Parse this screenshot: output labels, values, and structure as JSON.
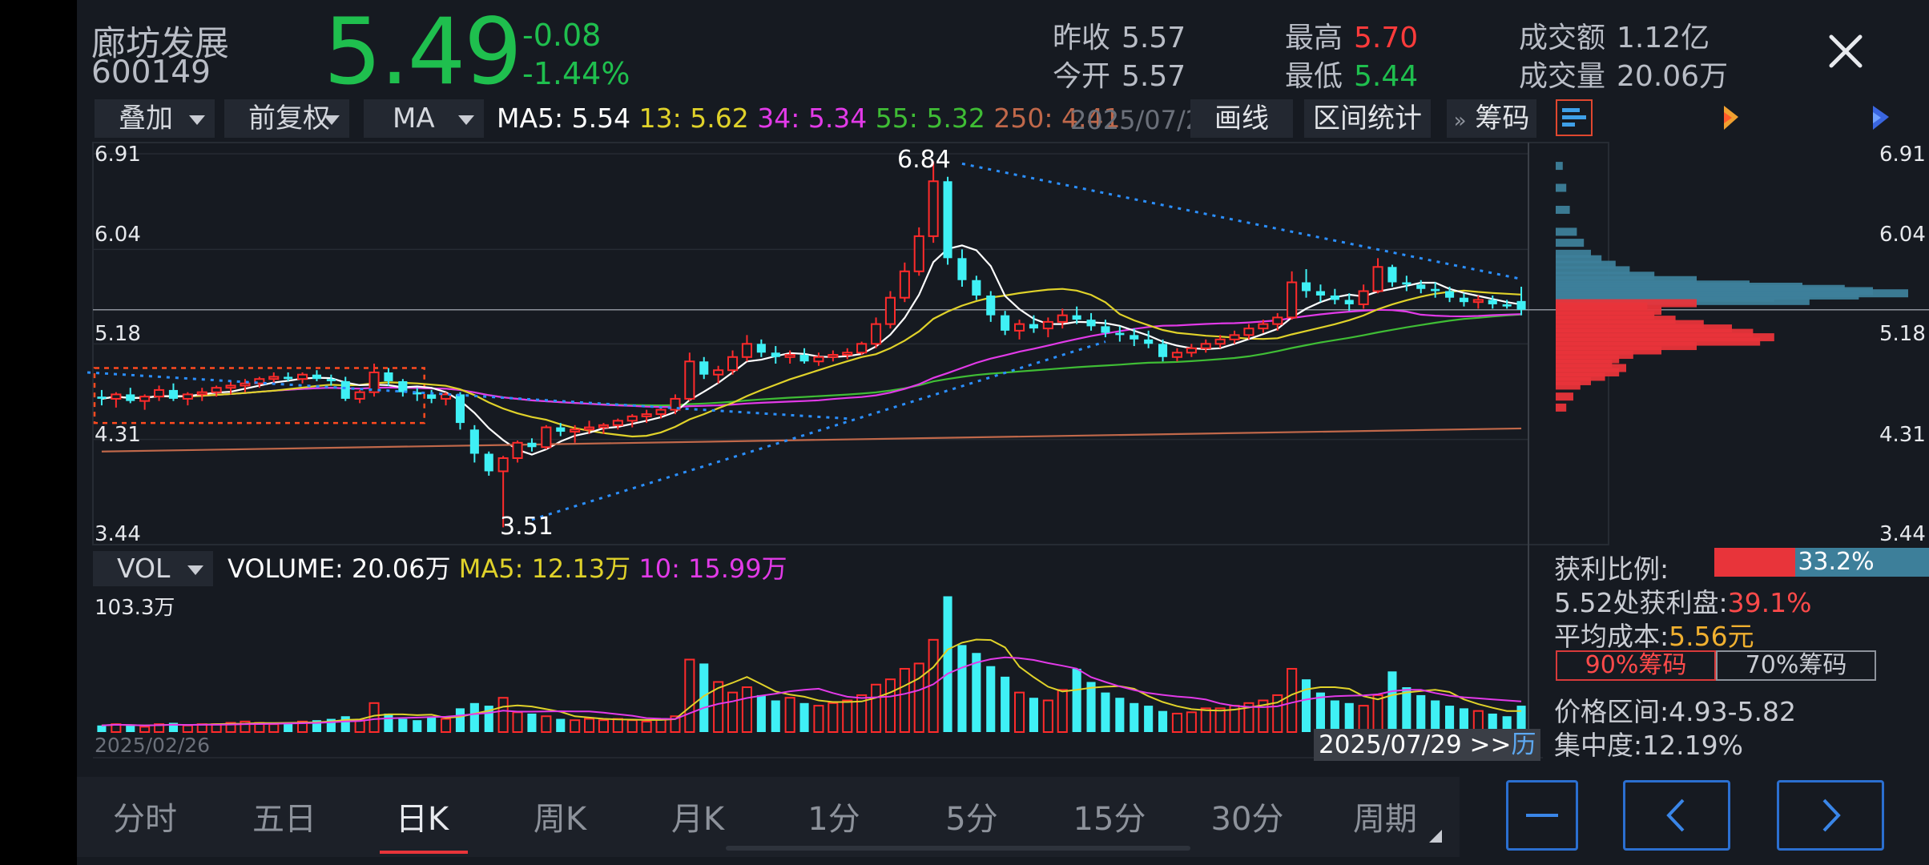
{
  "stock": {
    "name": "廊坊发展",
    "code": "600149",
    "price": "5.49",
    "change": "-0.08",
    "change_pct": "-1.44%"
  },
  "stats": {
    "prev_close_label": "昨收",
    "prev_close": "5.57",
    "open_label": "今开",
    "open": "5.57",
    "high_label": "最高",
    "high": "5.70",
    "low_label": "最低",
    "low": "5.44",
    "turnover_label": "成交额",
    "turnover": "1.12亿",
    "volume_label": "成交量",
    "volume": "20.06万"
  },
  "toolbar": {
    "overlay": "叠加",
    "adjust": "前复权",
    "indicator": "MA",
    "ma5": "MA5: 5.54",
    "ma13": "13: 5.62",
    "ma34": "34: 5.34",
    "ma55": "55: 5.32",
    "ma250": "250: 4.41",
    "date_partial": "2025/07/2",
    "draw": "画线",
    "range_stats": "区间统计",
    "chips": "筹码",
    "chips_arrow": "»"
  },
  "colors": {
    "up": "#ff2b2b",
    "down": "#3ff0f5",
    "ma5": "#ffffff",
    "ma13": "#e0d22a",
    "ma34": "#e23ae8",
    "ma55": "#3fbd35",
    "ma250": "#c0684a"
  },
  "price_axis": {
    "labels": [
      "6.91",
      "6.04",
      "5.18",
      "4.31",
      "3.44"
    ],
    "high_marker": "6.84",
    "low_marker": "3.51"
  },
  "volume_panel": {
    "indicator": "VOL",
    "volume": "VOLUME: 20.06万",
    "ma5": "MA5: 12.13万",
    "ma10": "10: 15.99万",
    "max_label": "103.3万",
    "start_date": "2025/02/26",
    "end_date": "2025/07/29 >>",
    "history": "历"
  },
  "chip_stats": {
    "profit_ratio_label": "获利比例:",
    "profit_ratio": "33.2%",
    "profit_ratio_value": 0.332,
    "profit_at_label": "5.52处获利盘:",
    "profit_at": "39.1%",
    "avg_cost_label": "平均成本:",
    "avg_cost": "5.56元",
    "tab_90": "90%筹码",
    "tab_70": "70%筹码",
    "range_label": "价格区间:",
    "range": "4.93-5.82",
    "concentration_label": "集中度:",
    "concentration": "12.19%"
  },
  "tabs": [
    "分时",
    "五日",
    "日K",
    "周K",
    "月K",
    "1分",
    "5分",
    "15分",
    "30分",
    "周期"
  ],
  "active_tab": "日K",
  "chart_data": {
    "type": "candlestick",
    "price_range": [
      3.44,
      6.91
    ],
    "candles_ohlc": [
      [
        4.7,
        4.76,
        4.62,
        4.68
      ],
      [
        4.68,
        4.74,
        4.6,
        4.72
      ],
      [
        4.72,
        4.78,
        4.64,
        4.66
      ],
      [
        4.66,
        4.72,
        4.58,
        4.7
      ],
      [
        4.7,
        4.8,
        4.66,
        4.76
      ],
      [
        4.76,
        4.82,
        4.66,
        4.68
      ],
      [
        4.68,
        4.74,
        4.62,
        4.72
      ],
      [
        4.72,
        4.78,
        4.66,
        4.74
      ],
      [
        4.74,
        4.8,
        4.7,
        4.78
      ],
      [
        4.78,
        4.84,
        4.72,
        4.8
      ],
      [
        4.8,
        4.86,
        4.74,
        4.82
      ],
      [
        4.82,
        4.88,
        4.78,
        4.86
      ],
      [
        4.86,
        4.92,
        4.82,
        4.88
      ],
      [
        4.88,
        4.92,
        4.84,
        4.86
      ],
      [
        4.86,
        4.92,
        4.82,
        4.9
      ],
      [
        4.9,
        4.94,
        4.84,
        4.86
      ],
      [
        4.86,
        4.9,
        4.8,
        4.84
      ],
      [
        4.84,
        4.88,
        4.66,
        4.68
      ],
      [
        4.68,
        4.76,
        4.64,
        4.74
      ],
      [
        4.74,
        5.0,
        4.7,
        4.92
      ],
      [
        4.92,
        4.96,
        4.8,
        4.84
      ],
      [
        4.84,
        4.86,
        4.7,
        4.74
      ],
      [
        4.74,
        4.78,
        4.66,
        4.72
      ],
      [
        4.72,
        4.76,
        4.64,
        4.68
      ],
      [
        4.68,
        4.74,
        4.62,
        4.72
      ],
      [
        4.72,
        4.74,
        4.4,
        4.46
      ],
      [
        4.4,
        4.44,
        4.1,
        4.18
      ],
      [
        4.18,
        4.2,
        3.98,
        4.02
      ],
      [
        4.02,
        4.16,
        3.51,
        4.14
      ],
      [
        4.14,
        4.3,
        4.1,
        4.28
      ],
      [
        4.28,
        4.32,
        4.2,
        4.24
      ],
      [
        4.24,
        4.44,
        4.22,
        4.42
      ],
      [
        4.42,
        4.46,
        4.34,
        4.38
      ],
      [
        4.38,
        4.44,
        4.28,
        4.4
      ],
      [
        4.4,
        4.48,
        4.36,
        4.42
      ],
      [
        4.42,
        4.46,
        4.36,
        4.44
      ],
      [
        4.44,
        4.5,
        4.4,
        4.48
      ],
      [
        4.48,
        4.54,
        4.42,
        4.52
      ],
      [
        4.52,
        4.58,
        4.46,
        4.54
      ],
      [
        4.54,
        4.6,
        4.5,
        4.58
      ],
      [
        4.58,
        4.72,
        4.54,
        4.68
      ],
      [
        4.68,
        5.1,
        4.66,
        5.02
      ],
      [
        5.02,
        5.06,
        4.86,
        4.9
      ],
      [
        4.9,
        4.98,
        4.82,
        4.94
      ],
      [
        4.94,
        5.12,
        4.9,
        5.06
      ],
      [
        5.06,
        5.26,
        5.02,
        5.18
      ],
      [
        5.18,
        5.22,
        5.06,
        5.1
      ],
      [
        5.1,
        5.16,
        5.0,
        5.06
      ],
      [
        5.06,
        5.12,
        5.0,
        5.08
      ],
      [
        5.08,
        5.14,
        5.0,
        5.02
      ],
      [
        5.02,
        5.1,
        4.98,
        5.06
      ],
      [
        5.06,
        5.12,
        5.02,
        5.08
      ],
      [
        5.08,
        5.14,
        5.04,
        5.1
      ],
      [
        5.1,
        5.2,
        5.08,
        5.18
      ],
      [
        5.18,
        5.42,
        5.14,
        5.36
      ],
      [
        5.36,
        5.66,
        5.32,
        5.6
      ],
      [
        5.6,
        5.92,
        5.56,
        5.84
      ],
      [
        5.84,
        6.24,
        5.8,
        6.16
      ],
      [
        6.16,
        6.84,
        6.1,
        6.66
      ],
      [
        6.66,
        6.7,
        5.9,
        5.96
      ],
      [
        5.96,
        6.04,
        5.7,
        5.76
      ],
      [
        5.76,
        5.8,
        5.58,
        5.62
      ],
      [
        5.62,
        5.66,
        5.38,
        5.44
      ],
      [
        5.44,
        5.48,
        5.26,
        5.3
      ],
      [
        5.3,
        5.4,
        5.22,
        5.36
      ],
      [
        5.36,
        5.44,
        5.28,
        5.32
      ],
      [
        5.32,
        5.42,
        5.24,
        5.38
      ],
      [
        5.38,
        5.5,
        5.32,
        5.44
      ],
      [
        5.44,
        5.52,
        5.36,
        5.4
      ],
      [
        5.4,
        5.46,
        5.3,
        5.34
      ],
      [
        5.34,
        5.4,
        5.24,
        5.28
      ],
      [
        5.28,
        5.34,
        5.2,
        5.26
      ],
      [
        5.26,
        5.32,
        5.16,
        5.22
      ],
      [
        5.22,
        5.3,
        5.14,
        5.18
      ],
      [
        5.18,
        5.22,
        5.02,
        5.06
      ],
      [
        5.06,
        5.14,
        5.02,
        5.1
      ],
      [
        5.1,
        5.18,
        5.06,
        5.14
      ],
      [
        5.14,
        5.22,
        5.1,
        5.18
      ],
      [
        5.18,
        5.26,
        5.14,
        5.22
      ],
      [
        5.22,
        5.3,
        5.18,
        5.26
      ],
      [
        5.26,
        5.36,
        5.22,
        5.32
      ],
      [
        5.32,
        5.4,
        5.28,
        5.36
      ],
      [
        5.36,
        5.46,
        5.3,
        5.42
      ],
      [
        5.42,
        5.84,
        5.4,
        5.74
      ],
      [
        5.74,
        5.86,
        5.6,
        5.66
      ],
      [
        5.66,
        5.72,
        5.56,
        5.62
      ],
      [
        5.62,
        5.68,
        5.54,
        5.58
      ],
      [
        5.58,
        5.64,
        5.48,
        5.54
      ],
      [
        5.54,
        5.72,
        5.5,
        5.66
      ],
      [
        5.66,
        5.96,
        5.64,
        5.88
      ],
      [
        5.88,
        5.9,
        5.7,
        5.74
      ],
      [
        5.74,
        5.8,
        5.66,
        5.72
      ],
      [
        5.72,
        5.76,
        5.64,
        5.68
      ],
      [
        5.68,
        5.74,
        5.6,
        5.66
      ],
      [
        5.66,
        5.7,
        5.56,
        5.6
      ],
      [
        5.6,
        5.64,
        5.52,
        5.56
      ],
      [
        5.56,
        5.62,
        5.5,
        5.58
      ],
      [
        5.58,
        5.62,
        5.5,
        5.54
      ],
      [
        5.54,
        5.58,
        5.5,
        5.52
      ],
      [
        5.57,
        5.7,
        5.44,
        5.49
      ]
    ],
    "volumes_wan": [
      5,
      6,
      5,
      4,
      6,
      7,
      5,
      6,
      6,
      7,
      8,
      7,
      6,
      7,
      8,
      9,
      10,
      12,
      9,
      22,
      14,
      10,
      9,
      11,
      10,
      18,
      22,
      20,
      26,
      15,
      14,
      12,
      10,
      9,
      10,
      9,
      10,
      9,
      8,
      10,
      12,
      55,
      52,
      38,
      30,
      34,
      28,
      24,
      26,
      22,
      20,
      22,
      24,
      28,
      36,
      40,
      48,
      52,
      70,
      103,
      66,
      60,
      50,
      42,
      30,
      26,
      24,
      32,
      48,
      38,
      30,
      26,
      22,
      20,
      16,
      14,
      15,
      18,
      18,
      20,
      22,
      24,
      28,
      48,
      40,
      30,
      24,
      22,
      20,
      28,
      46,
      34,
      28,
      24,
      20,
      18,
      16,
      14,
      12,
      20
    ],
    "ma_periods": [
      5,
      13,
      34,
      55,
      250
    ],
    "ma250_start": 4.2,
    "ma250_end": 4.41,
    "trend_lines": [
      {
        "from": [
          -1,
          4.92
        ],
        "to": [
          52,
          4.5
        ]
      },
      {
        "from": [
          30,
          3.58
        ],
        "to": [
          70,
          5.2
        ]
      },
      {
        "from": [
          60,
          6.82
        ],
        "to": [
          99,
          5.77
        ]
      }
    ],
    "box": {
      "from_index": 0,
      "to_index": 22,
      "top": 4.96,
      "bottom": 4.46
    },
    "chip_distribution": {
      "prices": [
        6.8,
        6.6,
        6.4,
        6.2,
        6.1,
        6.0,
        5.95,
        5.9,
        5.85,
        5.8,
        5.76,
        5.72,
        5.7,
        5.68,
        5.66,
        5.64,
        5.62,
        5.6,
        5.57,
        5.55,
        5.52,
        5.48,
        5.44,
        5.4,
        5.36,
        5.32,
        5.28,
        5.24,
        5.2,
        5.16,
        5.12,
        5.08,
        5.04,
        5.0,
        4.96,
        4.92,
        4.88,
        4.84,
        4.8,
        4.7,
        4.6
      ],
      "weights": [
        0.02,
        0.03,
        0.04,
        0.06,
        0.08,
        0.1,
        0.13,
        0.17,
        0.21,
        0.28,
        0.4,
        0.55,
        0.7,
        0.82,
        0.9,
        1.0,
        0.86,
        0.62,
        0.72,
        0.4,
        0.26,
        0.3,
        0.28,
        0.34,
        0.42,
        0.5,
        0.56,
        0.62,
        0.58,
        0.4,
        0.3,
        0.22,
        0.18,
        0.16,
        0.2,
        0.18,
        0.14,
        0.1,
        0.07,
        0.05,
        0.03
      ]
    }
  }
}
